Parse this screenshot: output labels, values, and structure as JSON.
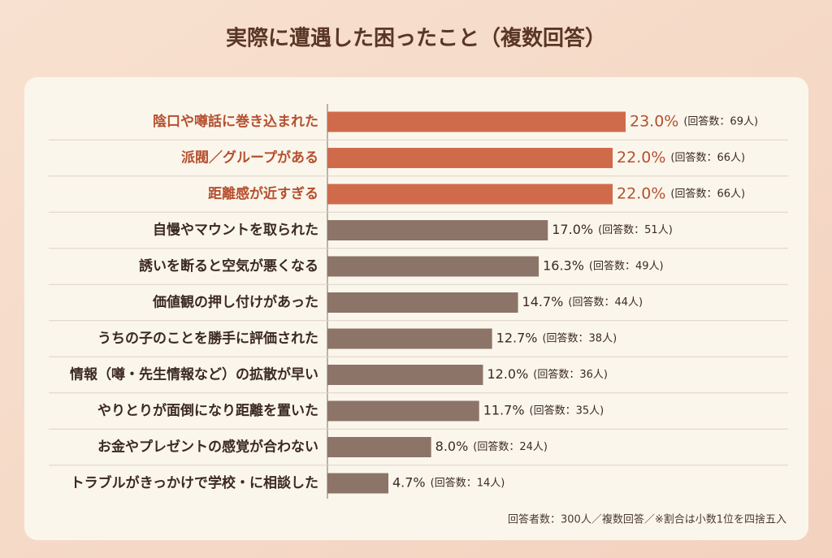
{
  "chart_data": {
    "type": "bar",
    "orientation": "horizontal",
    "title": "実際に遭遇した困ったこと（複数回答）",
    "categories": [
      "陰口や噂話に巻き込まれた",
      "派閥／グループがある",
      "距離感が近すぎる",
      "自慢やマウントを取られた",
      "誘いを断ると空気が悪くなる",
      "価値観の押し付けがあった",
      "うちの子のことを勝手に評価された",
      "情報（噂・先生情報など）の拡散が早い",
      "やりとりが面倒になり距離を置いた",
      "お金やプレゼントの感覚が合わない",
      "トラブルがきっかけで学校・に相談した"
    ],
    "values": [
      23.0,
      22.0,
      22.0,
      17.0,
      16.3,
      14.7,
      12.7,
      12.0,
      11.7,
      8.0,
      4.7
    ],
    "value_labels": [
      "23.0%",
      "22.0%",
      "22.0%",
      "17.0%",
      "16.3%",
      "14.7%",
      "12.7%",
      "12.0%",
      "11.7%",
      "8.0%",
      "4.7%"
    ],
    "counts": [
      69,
      66,
      66,
      51,
      49,
      44,
      38,
      36,
      35,
      24,
      14
    ],
    "count_labels": [
      "(回答数：69人)",
      "(回答数：66人)",
      "(回答数：66人)",
      "(回答数：51人)",
      "(回答数：49人)",
      "(回答数：44人)",
      "(回答数：38人)",
      "(回答数：36人)",
      "(回答数：35人)",
      "(回答数：24人)",
      "(回答数：14人)"
    ],
    "colors": [
      "#cf6b4a",
      "#cf6b4a",
      "#cf6b4a",
      "#8c7468",
      "#8c7468",
      "#8c7468",
      "#8c7468",
      "#8c7468",
      "#8c7468",
      "#8c7468",
      "#8c7468"
    ],
    "label_colors": [
      "#b5502f",
      "#b5502f",
      "#b5502f",
      "#3b2a22",
      "#3b2a22",
      "#3b2a22",
      "#3b2a22",
      "#3b2a22",
      "#3b2a22",
      "#3b2a22",
      "#3b2a22"
    ],
    "note": "回答者数：300人／複数回答／※割合は小数1位を四捨五入"
  }
}
